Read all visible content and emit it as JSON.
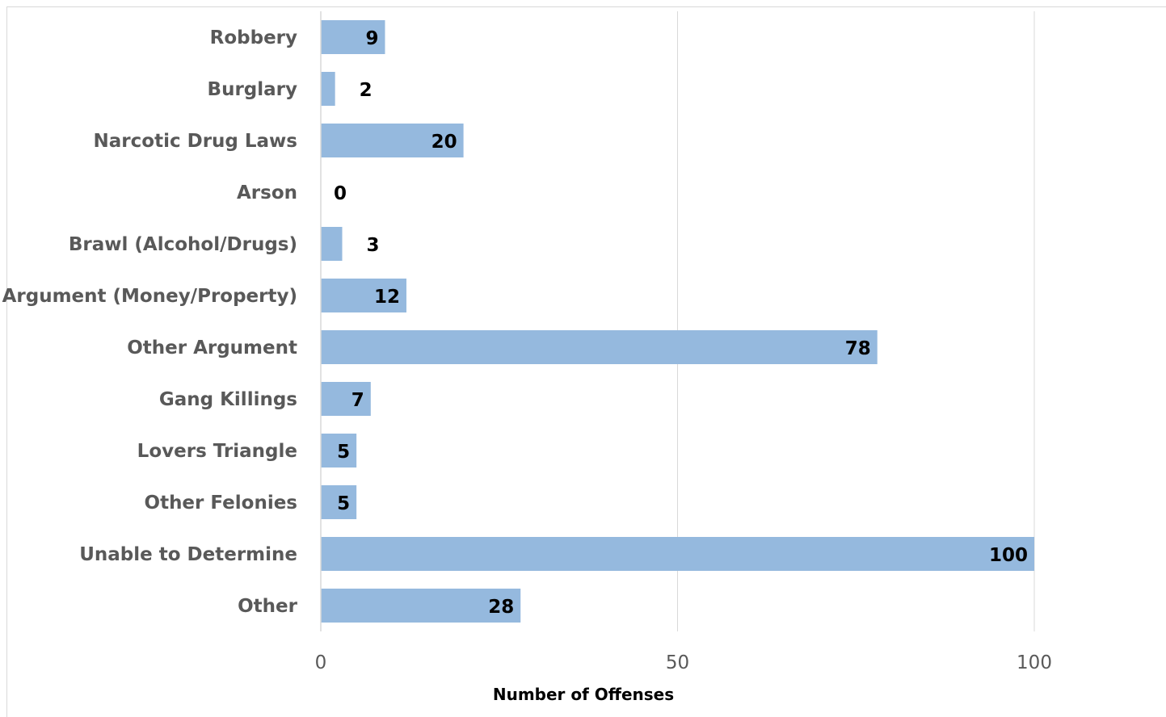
{
  "chart_data": {
    "type": "bar",
    "orientation": "horizontal",
    "categories": [
      "Robbery",
      "Burglary",
      "Narcotic Drug Laws",
      "Arson",
      "Brawl (Alcohol/Drugs)",
      "Argument (Money/Property)",
      "Other Argument",
      "Gang Killings",
      "Lovers Triangle",
      "Other Felonies",
      "Unable to Determine",
      "Other"
    ],
    "values": [
      9,
      2,
      20,
      0,
      3,
      12,
      78,
      7,
      5,
      5,
      100,
      28
    ],
    "data_labels": [
      "9",
      "2",
      "20",
      "0",
      "3",
      "12",
      "78",
      "7",
      "5",
      "5",
      "100",
      "28"
    ],
    "title": "",
    "xlabel": "Number of Offenses",
    "ylabel": "",
    "xlim": [
      0,
      120
    ],
    "x_ticks": [
      0,
      50,
      100
    ],
    "x_tick_labels": [
      "0",
      "50",
      "100"
    ],
    "grid": "vertical",
    "legend": "none",
    "bar_color": "#95b9de",
    "gridline_color": "#d9d9d9"
  }
}
